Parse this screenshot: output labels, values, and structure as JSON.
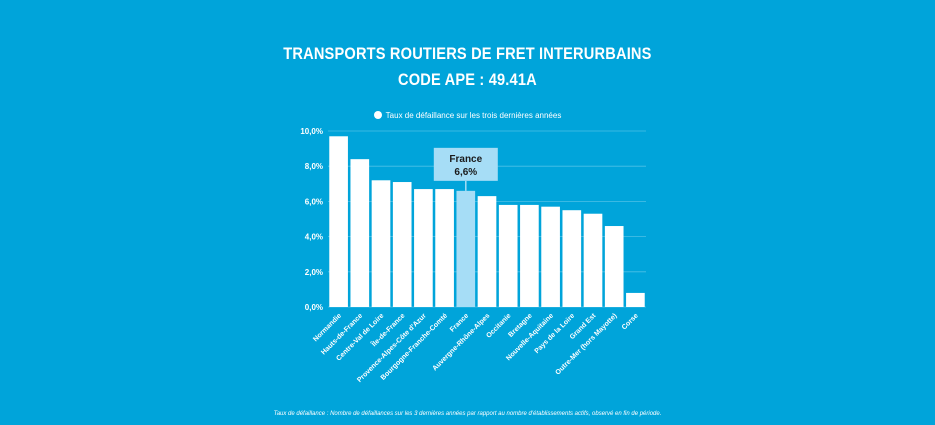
{
  "header": {
    "title_line1": "TRANSPORTS ROUTIERS DE FRET INTERURBAINS",
    "title_line2": "CODE APE : 49.41A"
  },
  "footnote": "Taux de défaillance : Nombre de défaillances sur les 3 dernières années par rapport au nombre d'établissements actifs, observé en fin de période.",
  "chart_data": {
    "type": "bar",
    "title": "TRANSPORTS ROUTIERS DE FRET INTERURBAINS — CODE APE : 49.41A",
    "legend": [
      "Taux de défaillance sur les trois dernières années"
    ],
    "categories": [
      "Normandie",
      "Hauts-de-France",
      "Centre-Val de Loire",
      "Île-de-France",
      "Provence-Alpes-Côte d'Azur",
      "Bourgogne-Franche-Comté",
      "France",
      "Auvergne-Rhône-Alpes",
      "Occitanie",
      "Bretagne",
      "Nouvelle-Aquitaine",
      "Pays de la Loire",
      "Grand Est",
      "Outre-Mer (hors Mayotte)",
      "Corse"
    ],
    "values": [
      9.7,
      8.4,
      7.2,
      7.1,
      6.7,
      6.7,
      6.6,
      6.3,
      5.8,
      5.8,
      5.7,
      5.5,
      5.3,
      4.6,
      0.8
    ],
    "highlight_index": 6,
    "callout": {
      "line1": "France",
      "line2": "6,6%"
    },
    "yticks": [
      "0,0%",
      "2,0%",
      "4,0%",
      "6,0%",
      "8,0%",
      "10,0%"
    ],
    "ylim": [
      0,
      10
    ],
    "ytick_values": [
      0,
      2,
      4,
      6,
      8,
      10
    ],
    "grid": true,
    "xlabel": "",
    "ylabel": "",
    "colors": {
      "bar": "#FFFFFF",
      "highlight": "#A6DDF6",
      "background": "#00A4DA",
      "grid": "#4DC0E6"
    }
  }
}
